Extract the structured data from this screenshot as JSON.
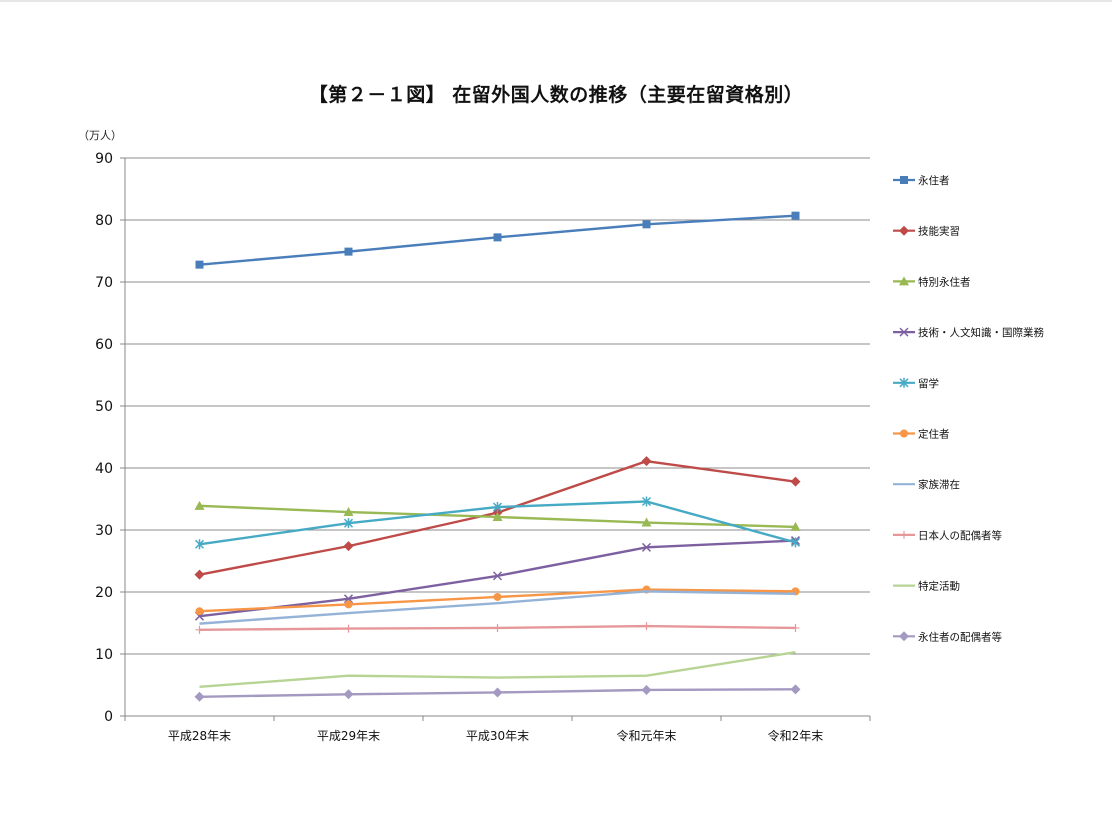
{
  "chart_data": {
    "type": "line",
    "title": "【第２－１図】 在留外国人数の推移（主要在留資格別）",
    "ylabel": "（万人）",
    "xlabel": "",
    "ylim": [
      0,
      90
    ],
    "y_ticks": [
      0,
      10,
      20,
      30,
      40,
      50,
      60,
      70,
      80,
      90
    ],
    "categories": [
      "平成28年末",
      "平成29年末",
      "平成30年末",
      "令和元年末",
      "令和2年末"
    ],
    "grid": true,
    "legend_position": "right",
    "series": [
      {
        "name": "永住者",
        "color": "#4a7ebb",
        "marker": "square",
        "values": [
          72.8,
          74.9,
          77.2,
          79.3,
          80.7
        ]
      },
      {
        "name": "技能実習",
        "color": "#be4b48",
        "marker": "diamond",
        "values": [
          22.8,
          27.4,
          32.8,
          41.1,
          37.8
        ]
      },
      {
        "name": "特別永住者",
        "color": "#98b954",
        "marker": "triangle",
        "values": [
          33.9,
          32.9,
          32.1,
          31.2,
          30.5
        ]
      },
      {
        "name": "技術・人文知識・国際業務",
        "color": "#7d60a0",
        "marker": "x",
        "values": [
          16.1,
          18.9,
          22.6,
          27.2,
          28.3
        ]
      },
      {
        "name": "留学",
        "color": "#46aac5",
        "marker": "star",
        "values": [
          27.7,
          31.1,
          33.7,
          34.6,
          28.0
        ]
      },
      {
        "name": "定住者",
        "color": "#f79646",
        "marker": "circle",
        "values": [
          16.9,
          18.0,
          19.2,
          20.4,
          20.1
        ]
      },
      {
        "name": "家族滞在",
        "color": "#95b3d7",
        "marker": "none",
        "values": [
          14.9,
          16.6,
          18.2,
          20.1,
          19.7
        ]
      },
      {
        "name": "日本人の配偶者等",
        "color": "#e6979a",
        "marker": "plus",
        "values": [
          13.9,
          14.1,
          14.2,
          14.5,
          14.2
        ]
      },
      {
        "name": "特定活動",
        "color": "#b7d494",
        "marker": "none",
        "values": [
          4.7,
          6.5,
          6.2,
          6.5,
          10.3
        ]
      },
      {
        "name": "永住者の配偶者等",
        "color": "#a499c1",
        "marker": "diamond",
        "values": [
          3.1,
          3.5,
          3.8,
          4.2,
          4.3
        ]
      }
    ]
  }
}
